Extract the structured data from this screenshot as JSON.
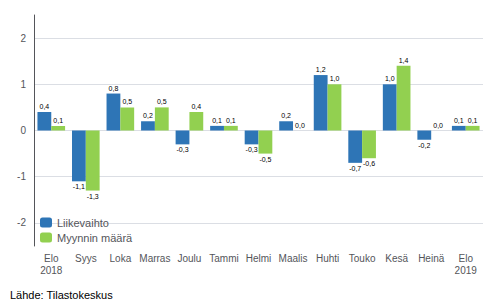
{
  "chart_data": {
    "type": "bar",
    "categories": [
      "Elo\n2018",
      "Syys",
      "Loka",
      "Marras",
      "Joulu",
      "Tammi",
      "Helmi",
      "Maalis",
      "Huhti",
      "Touko",
      "Kesä",
      "Heinä",
      "Elo\n2019"
    ],
    "series": [
      {
        "name": "Liikevaihto",
        "color": "#2E75B6",
        "values": [
          0.4,
          -1.1,
          0.8,
          0.2,
          -0.3,
          0.1,
          -0.3,
          0.2,
          1.2,
          -0.7,
          1.0,
          -0.2,
          0.1
        ],
        "value_labels": [
          "0,4",
          "-1,1",
          "0,8",
          "0,2",
          "-0,3",
          "0,1",
          "-0,3",
          "0,2",
          "1,2",
          "-0,7",
          "1,0",
          "-0,2",
          "0,1"
        ]
      },
      {
        "name": "Myynnin määrä",
        "color": "#92D050",
        "values": [
          0.1,
          -1.3,
          0.5,
          0.5,
          0.4,
          0.1,
          -0.5,
          0.0,
          1.0,
          -0.6,
          1.4,
          0.0,
          0.1
        ],
        "value_labels": [
          "0,1",
          "-1,3",
          "0,5",
          "0,5",
          "0,4",
          "0,1",
          "-0,5",
          "0,0",
          "1,0",
          "-0,6",
          "1,4",
          "0,0",
          "0,1"
        ]
      }
    ],
    "ylim": [
      -2.5,
      2.5
    ],
    "yticks": [
      -2,
      -1,
      0,
      1,
      2
    ],
    "grid": true,
    "legend": "lower left",
    "data_labels": true,
    "annotations": [
      "Lähde: Tilastokeskus"
    ]
  }
}
